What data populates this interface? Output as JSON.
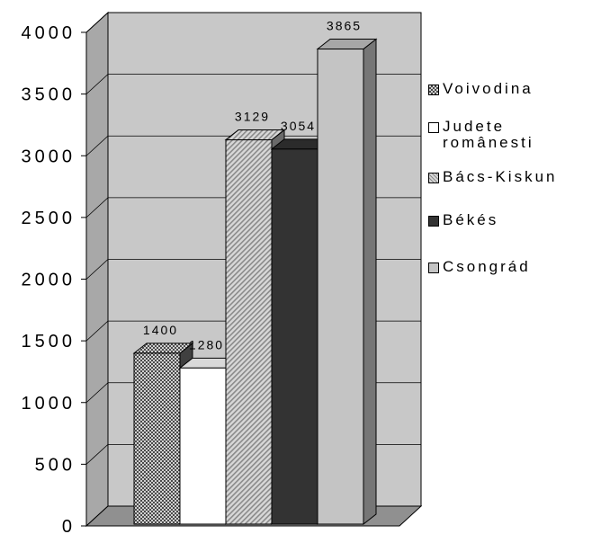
{
  "chart_data": {
    "type": "bar",
    "title": "",
    "xlabel": "",
    "ylabel": "",
    "ylim": [
      0,
      4000
    ],
    "yticks": [
      "0",
      "500",
      "1000",
      "1500",
      "2000",
      "2500",
      "3000",
      "3500",
      "4000"
    ],
    "grid": true,
    "legend_position": "right",
    "series": [
      {
        "name": "Voivodina",
        "value": 1400,
        "label": "1400",
        "fill": "checker",
        "color": "#6a6a6a"
      },
      {
        "name_lines": [
          "Judete",
          "românesti"
        ],
        "value": 1280,
        "label": "1280",
        "fill": "solid",
        "color": "#ffffff"
      },
      {
        "name": "Bács-Kiskun",
        "value": 3129,
        "label": "3129",
        "fill": "diagonal",
        "color": "#b0b0b0"
      },
      {
        "name": "Békés",
        "value": 3054,
        "label": "3054",
        "fill": "solid",
        "color": "#333333"
      },
      {
        "name": "Csongrád",
        "value": 3865,
        "label": "3865",
        "fill": "solid",
        "color": "#c4c4c4"
      }
    ]
  }
}
